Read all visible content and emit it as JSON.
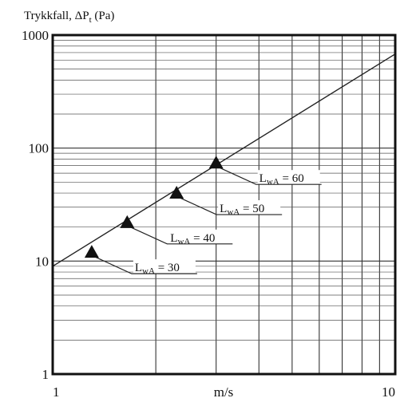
{
  "chart_data": {
    "type": "line",
    "title": "",
    "ylabel_parts": {
      "main": "Trykkfall, ΔP",
      "sub": "t",
      "unit": " (Pa)"
    },
    "xlabel": "m/s",
    "xscale": "log",
    "yscale": "log",
    "xlim": [
      1,
      10
    ],
    "ylim": [
      1,
      1000
    ],
    "x_tick_labels": [
      "1",
      "10"
    ],
    "y_tick_labels": [
      "1",
      "10",
      "100",
      "1000"
    ],
    "grid": true,
    "series": [
      {
        "x": [
          1,
          10
        ],
        "y": [
          9,
          680
        ]
      }
    ],
    "markers": [
      {
        "x": 1.3,
        "y": 12,
        "label_main": "L",
        "label_sub": "wA",
        "label_value": " = 30"
      },
      {
        "x": 1.65,
        "y": 22,
        "label_main": "L",
        "label_sub": "wA",
        "label_value": " = 40"
      },
      {
        "x": 2.3,
        "y": 40,
        "label_main": "L",
        "label_sub": "wA",
        "label_value": " = 50"
      },
      {
        "x": 3.0,
        "y": 74,
        "label_main": "L",
        "label_sub": "wA",
        "label_value": " = 60"
      }
    ]
  }
}
